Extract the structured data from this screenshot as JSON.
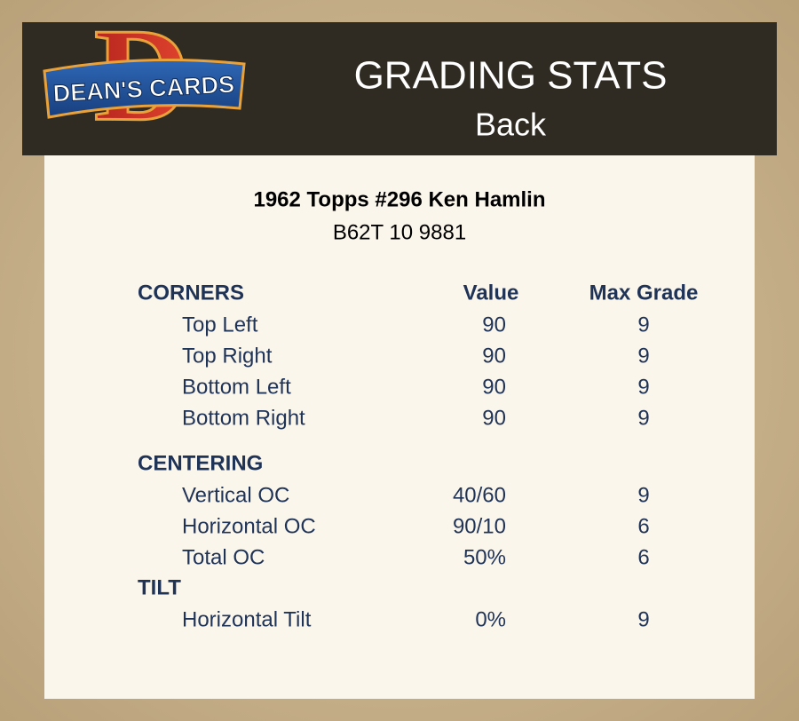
{
  "logo": {
    "letter": "D",
    "text": "DEAN'S CARDS"
  },
  "header": {
    "title": "GRADING STATS",
    "subtitle": "Back"
  },
  "card": {
    "title": "1962 Topps #296 Ken Hamlin",
    "code": "B62T 10 9881"
  },
  "table": {
    "columns": [
      "Value",
      "Max Grade"
    ],
    "sections": [
      {
        "name": "CORNERS",
        "rows": [
          [
            "Top Left",
            "90",
            "9"
          ],
          [
            "Top Right",
            "90",
            "9"
          ],
          [
            "Bottom Left",
            "90",
            "9"
          ],
          [
            "Bottom Right",
            "90",
            "9"
          ]
        ]
      },
      {
        "name": "CENTERING",
        "rows": [
          [
            "Vertical OC",
            "40/60",
            "9"
          ],
          [
            "Horizontal OC",
            "90/10",
            "6"
          ],
          [
            "Total OC",
            "50%",
            "6"
          ]
        ]
      },
      {
        "name": "TILT",
        "rows": [
          [
            "Horizontal Tilt",
            "0%",
            "9"
          ]
        ]
      }
    ]
  }
}
